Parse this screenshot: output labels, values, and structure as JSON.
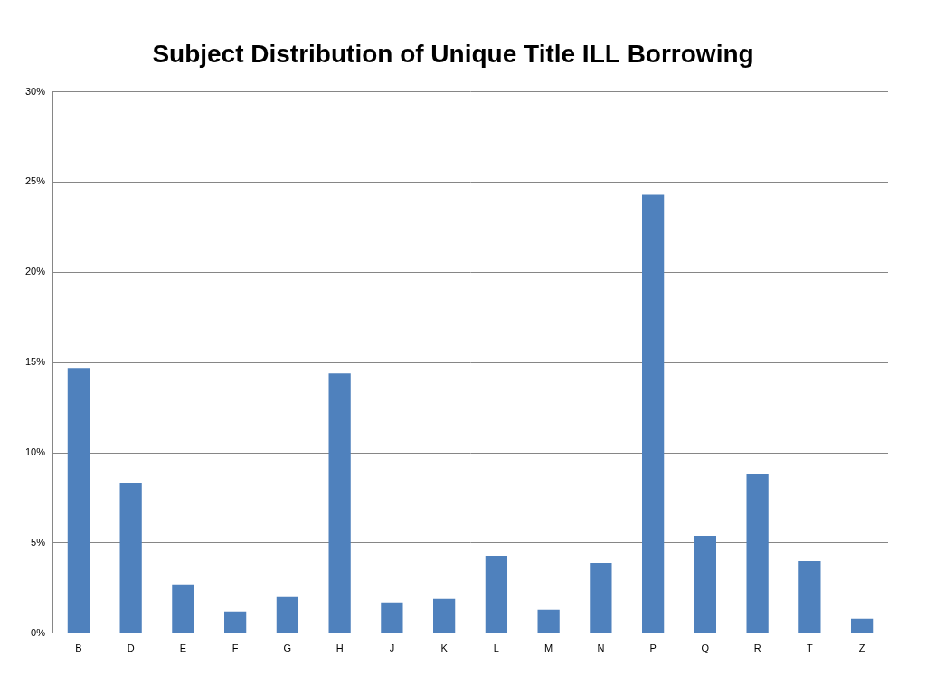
{
  "chart_data": {
    "type": "bar",
    "title": "Subject Distribution of Unique Title ILL Borrowing",
    "categories": [
      "B",
      "D",
      "E",
      "F",
      "G",
      "H",
      "J",
      "K",
      "L",
      "M",
      "N",
      "P",
      "Q",
      "R",
      "T",
      "Z"
    ],
    "values": [
      14.7,
      8.3,
      2.7,
      1.2,
      2.0,
      14.4,
      1.7,
      1.9,
      4.3,
      1.3,
      3.9,
      24.3,
      5.4,
      8.8,
      4.0,
      0.8
    ],
    "color": "#4f81bd",
    "ylim": [
      0,
      30
    ],
    "yticks": [
      {
        "value": 0,
        "label": "0%"
      },
      {
        "value": 5,
        "label": "5%"
      },
      {
        "value": 10,
        "label": "10%"
      },
      {
        "value": 15,
        "label": "15%"
      },
      {
        "value": 20,
        "label": "20%"
      },
      {
        "value": 25,
        "label": "25%"
      },
      {
        "value": 30,
        "label": "30%"
      }
    ],
    "grid": true
  }
}
